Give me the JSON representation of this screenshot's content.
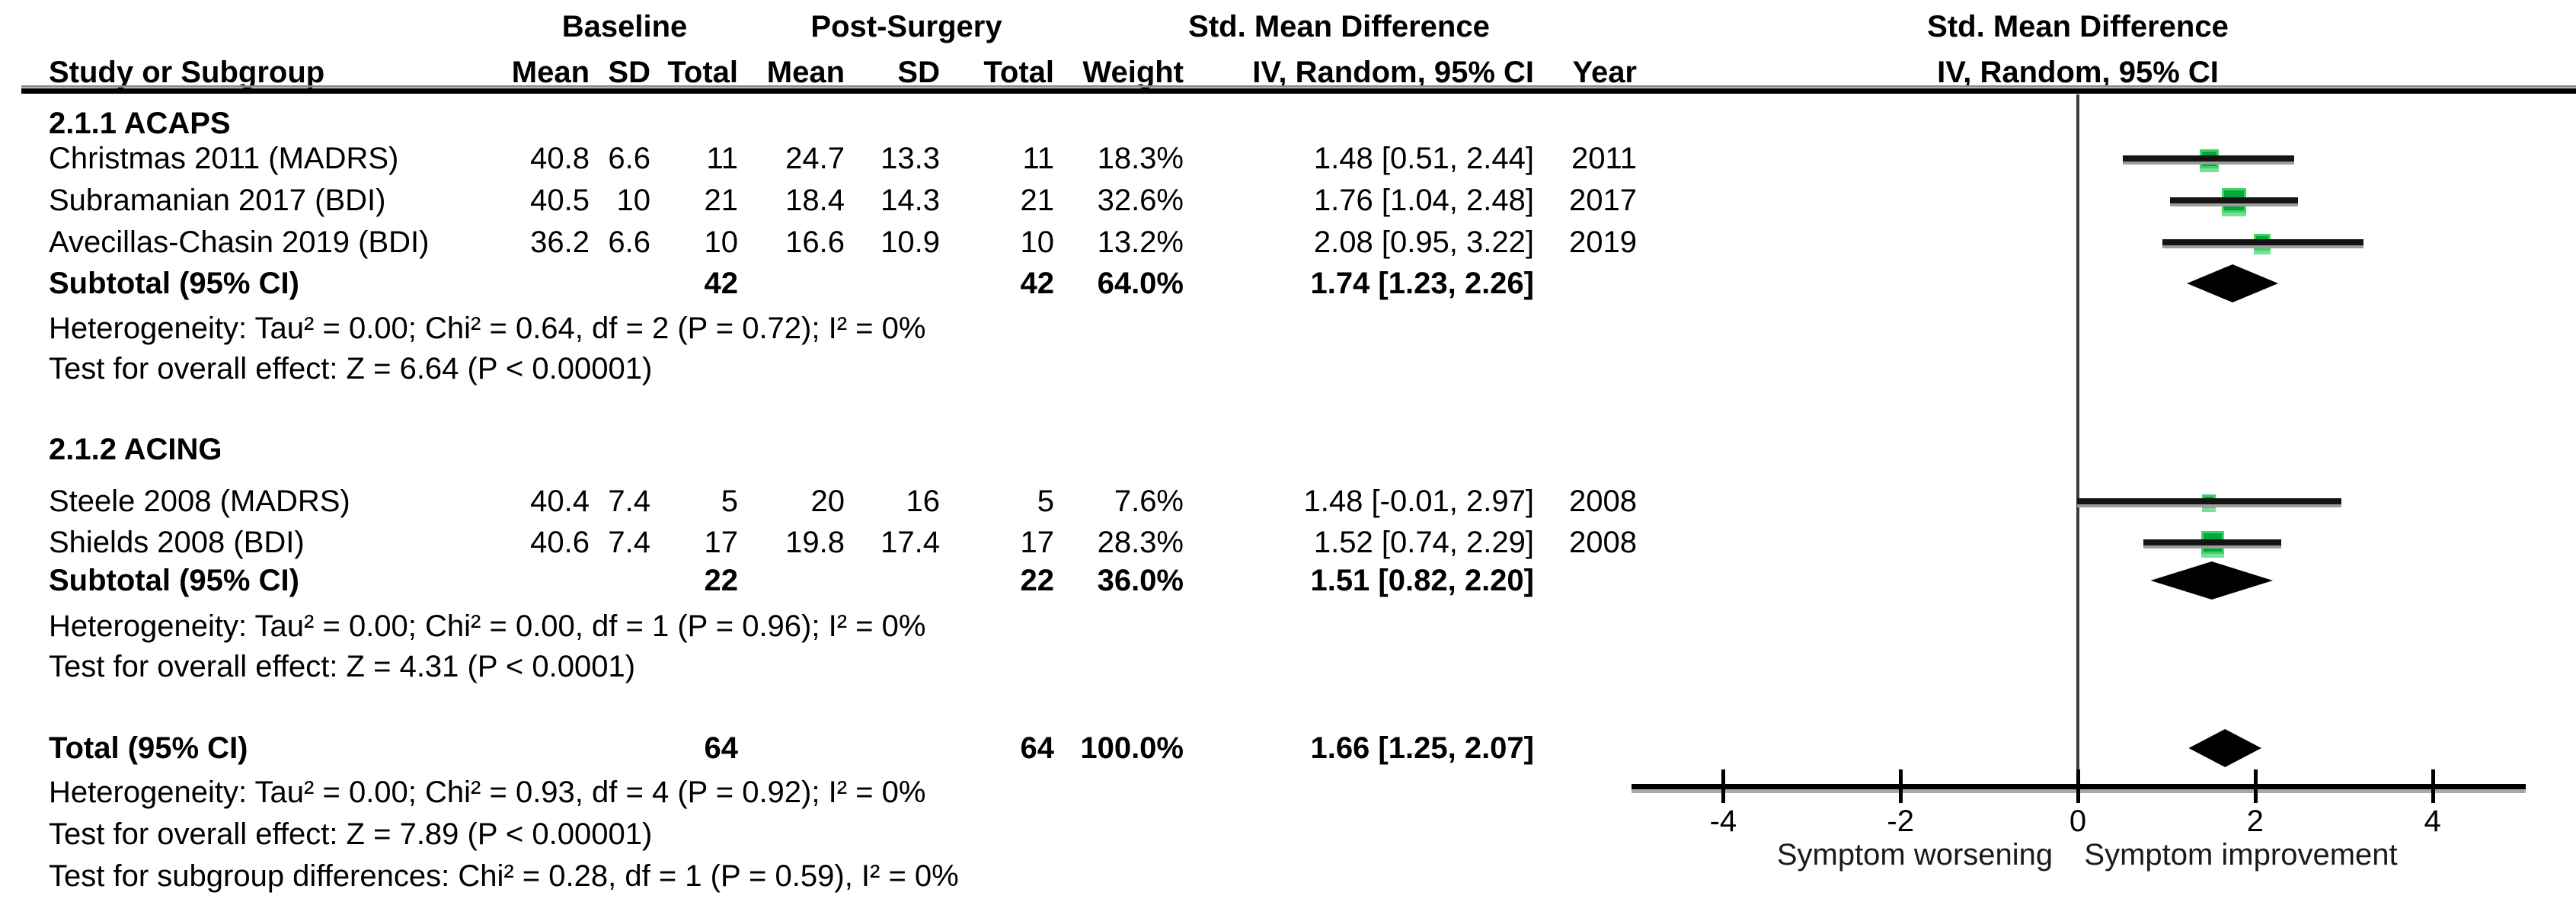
{
  "header": {
    "groups": {
      "baseline": "Baseline",
      "post_surgery": "Post-Surgery",
      "smd": "Std. Mean Difference"
    },
    "cols": {
      "study": "Study or Subgroup",
      "mean1": "Mean",
      "sd1": "SD",
      "total1": "Total",
      "mean2": "Mean",
      "sd2": "SD",
      "total2": "Total",
      "weight": "Weight",
      "ci": "IV, Random, 95% CI",
      "year": "Year"
    },
    "plot": {
      "line1": "Std. Mean Difference",
      "line2": "IV, Random, 95% CI"
    }
  },
  "chart_data": {
    "type": "forest",
    "effect_measure": "Std. Mean Difference (IV, Random, 95% CI)",
    "axis": {
      "ticks": [
        -4,
        -2,
        0,
        2,
        4
      ],
      "min": -5,
      "max": 5,
      "zero_line": 0,
      "caption_left": "Symptom worsening",
      "caption_right": "Symptom improvement"
    },
    "sections": [
      {
        "label": "2.1.1 ACAPS",
        "studies": [
          {
            "study": "Christmas 2011 (MADRS)",
            "mean1": "40.8",
            "sd1": "6.6",
            "total1": "11",
            "mean2": "24.7",
            "sd2": "13.3",
            "total2": "11",
            "weight": "18.3%",
            "weight_pct": 18.3,
            "est": 1.48,
            "lo": 0.51,
            "hi": 2.44,
            "ci_text": "1.48 [0.51, 2.44]",
            "year": "2011"
          },
          {
            "study": "Subramanian 2017 (BDI)",
            "mean1": "40.5",
            "sd1": "10",
            "total1": "21",
            "mean2": "18.4",
            "sd2": "14.3",
            "total2": "21",
            "weight": "32.6%",
            "weight_pct": 32.6,
            "est": 1.76,
            "lo": 1.04,
            "hi": 2.48,
            "ci_text": "1.76 [1.04, 2.48]",
            "year": "2017"
          },
          {
            "study": "Avecillas-Chasin 2019 (BDI)",
            "mean1": "36.2",
            "sd1": "6.6",
            "total1": "10",
            "mean2": "16.6",
            "sd2": "10.9",
            "total2": "10",
            "weight": "13.2%",
            "weight_pct": 13.2,
            "est": 2.08,
            "lo": 0.95,
            "hi": 3.22,
            "ci_text": "2.08 [0.95, 3.22]",
            "year": "2019"
          }
        ],
        "subtotal": {
          "label": "Subtotal (95% CI)",
          "total1": "42",
          "total2": "42",
          "weight": "64.0%",
          "est": 1.74,
          "lo": 1.23,
          "hi": 2.26,
          "ci_text": "1.74 [1.23, 2.26]"
        },
        "notes": [
          "Heterogeneity: Tau² = 0.00; Chi² = 0.64, df = 2 (P = 0.72); I² = 0%",
          "Test for overall effect: Z = 6.64 (P < 0.00001)"
        ]
      },
      {
        "label": "2.1.2 ACING",
        "studies": [
          {
            "study": "Steele 2008 (MADRS)",
            "mean1": "40.4",
            "sd1": "7.4",
            "total1": "5",
            "mean2": "20",
            "sd2": "16",
            "total2": "5",
            "weight": "7.6%",
            "weight_pct": 7.6,
            "est": 1.48,
            "lo": -0.01,
            "hi": 2.97,
            "ci_text": "1.48 [-0.01, 2.97]",
            "year": "2008"
          },
          {
            "study": "Shields 2008 (BDI)",
            "mean1": "40.6",
            "sd1": "7.4",
            "total1": "17",
            "mean2": "19.8",
            "sd2": "17.4",
            "total2": "17",
            "weight": "28.3%",
            "weight_pct": 28.3,
            "est": 1.52,
            "lo": 0.74,
            "hi": 2.29,
            "ci_text": "1.52 [0.74, 2.29]",
            "year": "2008"
          }
        ],
        "subtotal": {
          "label": "Subtotal (95% CI)",
          "total1": "22",
          "total2": "22",
          "weight": "36.0%",
          "est": 1.51,
          "lo": 0.82,
          "hi": 2.2,
          "ci_text": "1.51 [0.82, 2.20]"
        },
        "notes": [
          "Heterogeneity: Tau² = 0.00; Chi² = 0.00, df = 1 (P = 0.96); I² = 0%",
          "Test for overall effect: Z = 4.31 (P < 0.0001)"
        ]
      }
    ],
    "total": {
      "label": "Total (95% CI)",
      "total1": "64",
      "total2": "64",
      "weight": "100.0%",
      "est": 1.66,
      "lo": 1.25,
      "hi": 2.07,
      "ci_text": "1.66 [1.25, 2.07]",
      "notes": [
        "Heterogeneity: Tau² = 0.00; Chi² = 0.93, df = 4 (P = 0.92); I² = 0%",
        "Test for overall effect: Z = 7.89 (P < 0.00001)",
        "Test for subgroup differences: Chi² = 0.28, df = 1 (P = 0.59), I² = 0%"
      ]
    },
    "colors": {
      "marker": "#00a93e",
      "marker_border": "#41d264",
      "marker_shadow": "#79e096",
      "diamond": "#000000",
      "ci_line": "#141414"
    }
  }
}
